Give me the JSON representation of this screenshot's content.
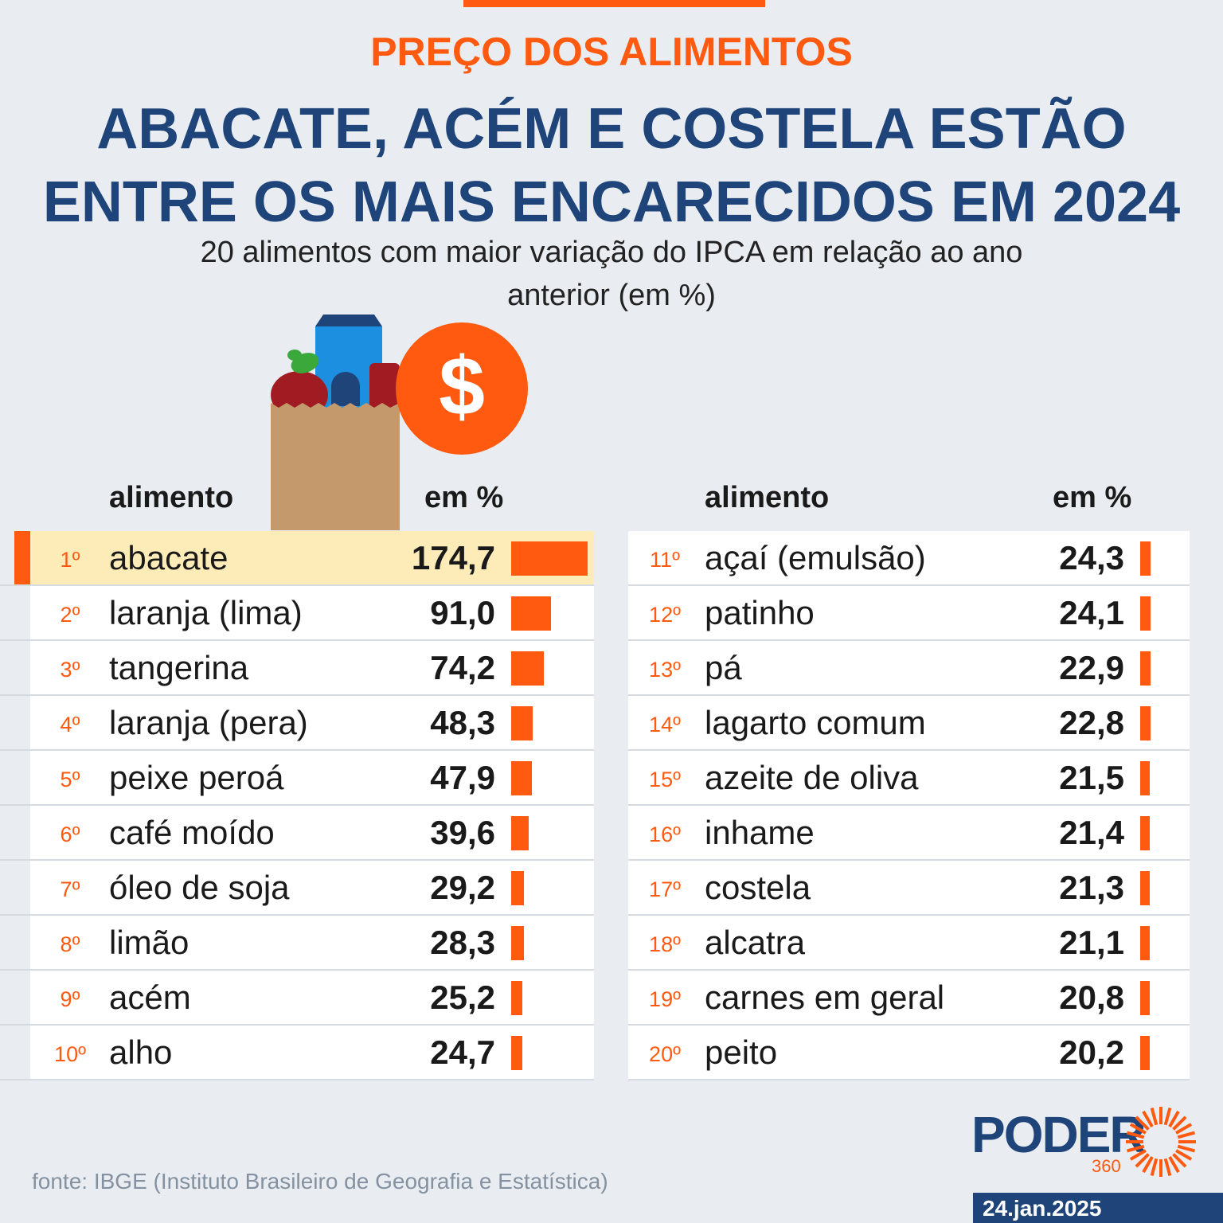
{
  "kicker": "PREÇO DOS ALIMENTOS",
  "headline_line1": "ABACATE, ACÉM E COSTELA ESTÃO",
  "headline_line2": "ENTRE OS MAIS ENCARECIDOS EM 2024",
  "subtitle_line1": "20 alimentos com maior variação do IPCA em relação ao ano",
  "subtitle_line2": "anterior (em %)",
  "table": {
    "col_food": "alimento",
    "col_pct": "em %"
  },
  "chart_data": {
    "type": "bar",
    "title": "ABACATE, ACÉM E COSTELA ESTÃO ENTRE OS MAIS ENCARECIDOS EM 2024",
    "subtitle": "20 alimentos com maior variação do IPCA em relação ao ano anterior (em %)",
    "orientation": "horizontal",
    "max": 174.7,
    "rows": [
      {
        "rank": "1º",
        "name": "abacate",
        "value": 174.7,
        "label": "174,7"
      },
      {
        "rank": "2º",
        "name": "laranja (lima)",
        "value": 91.0,
        "label": "91,0"
      },
      {
        "rank": "3º",
        "name": "tangerina",
        "value": 74.2,
        "label": "74,2"
      },
      {
        "rank": "4º",
        "name": "laranja (pera)",
        "value": 48.3,
        "label": "48,3"
      },
      {
        "rank": "5º",
        "name": "peixe peroá",
        "value": 47.9,
        "label": "47,9"
      },
      {
        "rank": "6º",
        "name": "café moído",
        "value": 39.6,
        "label": "39,6"
      },
      {
        "rank": "7º",
        "name": "óleo de soja",
        "value": 29.2,
        "label": "29,2"
      },
      {
        "rank": "8º",
        "name": "limão",
        "value": 28.3,
        "label": "28,3"
      },
      {
        "rank": "9º",
        "name": "acém",
        "value": 25.2,
        "label": "25,2"
      },
      {
        "rank": "10º",
        "name": "alho",
        "value": 24.7,
        "label": "24,7"
      },
      {
        "rank": "11º",
        "name": "açaí (emulsão)",
        "value": 24.3,
        "label": "24,3"
      },
      {
        "rank": "12º",
        "name": "patinho",
        "value": 24.1,
        "label": "24,1"
      },
      {
        "rank": "13º",
        "name": "pá",
        "value": 22.9,
        "label": "22,9"
      },
      {
        "rank": "14º",
        "name": "lagarto comum",
        "value": 22.8,
        "label": "22,8"
      },
      {
        "rank": "15º",
        "name": "azeite de oliva",
        "value": 21.5,
        "label": "21,5"
      },
      {
        "rank": "16º",
        "name": "inhame",
        "value": 21.4,
        "label": "21,4"
      },
      {
        "rank": "17º",
        "name": "costela",
        "value": 21.3,
        "label": "21,3"
      },
      {
        "rank": "18º",
        "name": "alcatra",
        "value": 21.1,
        "label": "21,1"
      },
      {
        "rank": "19º",
        "name": "carnes em geral",
        "value": 20.8,
        "label": "20,8"
      },
      {
        "rank": "20º",
        "name": "peito",
        "value": 20.2,
        "label": "20,2"
      }
    ]
  },
  "source": "fonte: IBGE (Instituto Brasileiro de Geografia e Estatística)",
  "logo": {
    "name": "PODER",
    "sub": "360"
  },
  "date": "24.jan.2025",
  "colors": {
    "accent": "#ff5a0f",
    "navy": "#1e4479",
    "highlight": "#fdecb8",
    "background": "#e9edf1"
  }
}
